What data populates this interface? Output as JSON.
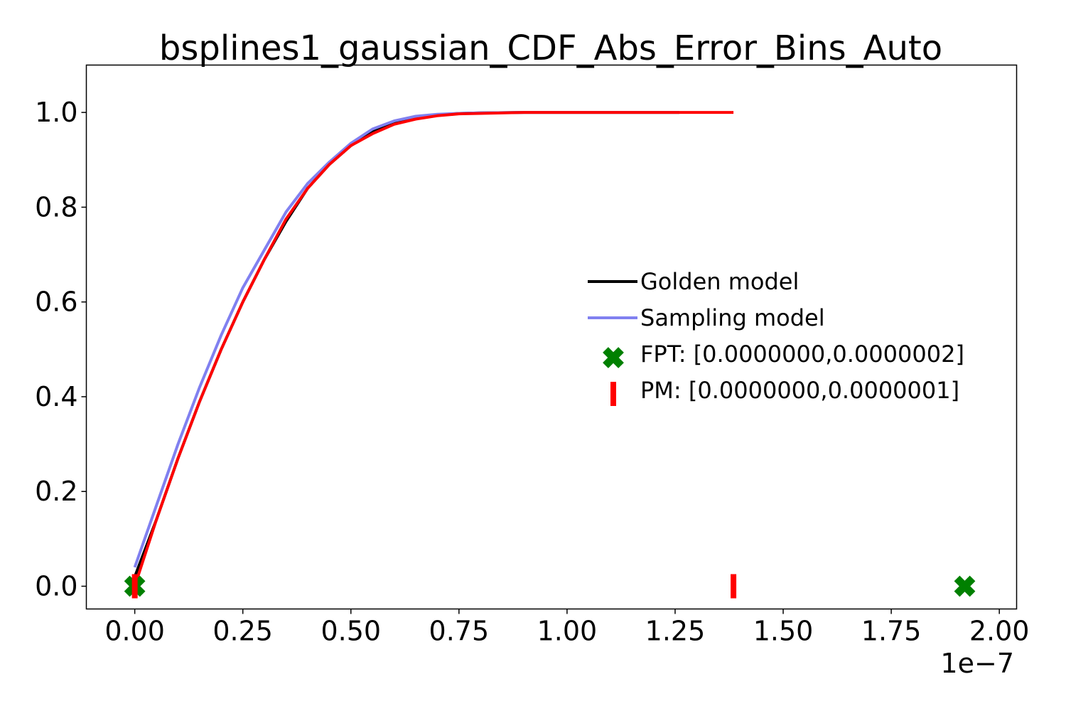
{
  "chart_data": {
    "type": "line",
    "title": "bsplines1_gaussian_CDF_Abs_Error_Bins_Auto",
    "xlabel": "",
    "ylabel": "",
    "x_offset_label": "1e−7",
    "xlim": [
      -0.112,
      2.04
    ],
    "ylim": [
      -0.048,
      1.1
    ],
    "x_ticks": [
      0.0,
      0.25,
      0.5,
      0.75,
      1.0,
      1.25,
      1.5,
      1.75,
      2.0
    ],
    "x_tick_labels": [
      "0.00",
      "0.25",
      "0.50",
      "0.75",
      "1.00",
      "1.25",
      "1.50",
      "1.75",
      "2.00"
    ],
    "y_ticks": [
      0.0,
      0.2,
      0.4,
      0.6,
      0.8,
      1.0
    ],
    "y_tick_labels": [
      "0.0",
      "0.2",
      "0.4",
      "0.6",
      "0.8",
      "1.0"
    ],
    "grid": false,
    "legend_position": "center-right",
    "series": [
      {
        "name": "Golden model",
        "kind": "line",
        "color": "#000000",
        "x": [
          0.0,
          0.05,
          0.1,
          0.15,
          0.2,
          0.25,
          0.3,
          0.35,
          0.4,
          0.45,
          0.5,
          0.55,
          0.6,
          0.65,
          0.7,
          0.75,
          0.8,
          0.9,
          1.0,
          1.1,
          1.2,
          1.26
        ],
        "y": [
          0.02,
          0.14,
          0.27,
          0.39,
          0.5,
          0.6,
          0.69,
          0.77,
          0.84,
          0.89,
          0.93,
          0.96,
          0.98,
          0.99,
          0.995,
          0.998,
          0.999,
          1.0,
          1.0,
          1.0,
          1.0,
          1.0
        ]
      },
      {
        "name": "Sampling model",
        "kind": "line",
        "color": "#8080f0",
        "x": [
          0.0,
          0.05,
          0.1,
          0.15,
          0.2,
          0.25,
          0.3,
          0.35,
          0.4,
          0.45,
          0.5,
          0.55,
          0.6,
          0.65,
          0.7,
          0.75,
          0.8,
          0.9,
          1.0,
          1.1,
          1.2,
          1.26
        ],
        "y": [
          0.04,
          0.17,
          0.3,
          0.42,
          0.53,
          0.63,
          0.71,
          0.79,
          0.85,
          0.895,
          0.935,
          0.965,
          0.982,
          0.992,
          0.996,
          0.998,
          0.999,
          1.0,
          1.0,
          1.0,
          1.0,
          1.0
        ]
      },
      {
        "name": "",
        "kind": "line",
        "color": "#ff0000",
        "x": [
          0.0,
          0.05,
          0.1,
          0.15,
          0.2,
          0.25,
          0.3,
          0.35,
          0.4,
          0.45,
          0.5,
          0.55,
          0.6,
          0.65,
          0.7,
          0.75,
          0.8,
          0.9,
          1.0,
          1.1,
          1.2,
          1.3,
          1.385
        ],
        "y": [
          0.0,
          0.14,
          0.27,
          0.39,
          0.5,
          0.6,
          0.69,
          0.775,
          0.84,
          0.89,
          0.93,
          0.955,
          0.975,
          0.986,
          0.993,
          0.997,
          0.998,
          1.0,
          1.0,
          1.0,
          1.0,
          1.0,
          1.0
        ]
      },
      {
        "name": "FPT: [0.0000000,0.0000002]",
        "kind": "x-marker",
        "color": "#008000",
        "x": [
          0.0,
          1.92
        ],
        "y": [
          0.0,
          0.0
        ]
      },
      {
        "name": "PM: [0.0000000,0.0000001]",
        "kind": "bar-marker",
        "color": "#ff0000",
        "x": [
          0.0,
          1.385
        ],
        "y": [
          0.0,
          0.0
        ]
      }
    ]
  }
}
